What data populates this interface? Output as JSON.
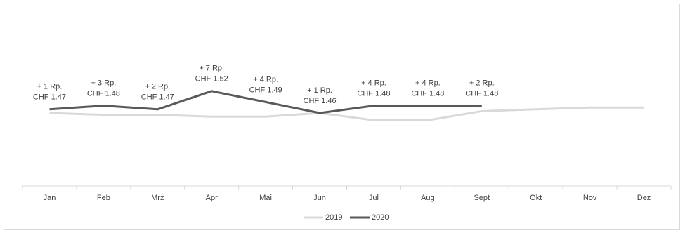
{
  "chart_data": {
    "type": "line",
    "categories": [
      "Jan",
      "Feb",
      "Mrz",
      "Apr",
      "Mai",
      "Jun",
      "Jul",
      "Aug",
      "Sept",
      "Okt",
      "Nov",
      "Dez"
    ],
    "series": [
      {
        "name": "2019",
        "color": "#d9d9d9",
        "values": [
          1.46,
          1.455,
          1.455,
          1.45,
          1.45,
          1.46,
          1.44,
          1.44,
          1.465,
          1.47,
          1.475,
          1.475
        ]
      },
      {
        "name": "2020",
        "color": "#595959",
        "values": [
          1.47,
          1.48,
          1.47,
          1.52,
          1.49,
          1.46,
          1.48,
          1.48,
          1.48,
          null,
          null,
          null
        ],
        "value_labels": [
          "CHF 1.47",
          "CHF 1.48",
          "CHF 1.47",
          "CHF 1.52",
          "CHF 1.49",
          "CHF 1.46",
          "CHF 1.48",
          "CHF 1.48",
          "CHF 1.48",
          null,
          null,
          null
        ],
        "change_labels": [
          "+ 1 Rp.",
          "+ 3 Rp.",
          "+ 2 Rp.",
          "+ 7 Rp.",
          "+ 4 Rp.",
          "+ 1 Rp.",
          "+ 4 Rp.",
          "+ 4 Rp.",
          "+ 2 Rp.",
          null,
          null,
          null
        ]
      }
    ],
    "ylim": [
      1.26,
      1.76
    ],
    "legend": "bottom"
  }
}
